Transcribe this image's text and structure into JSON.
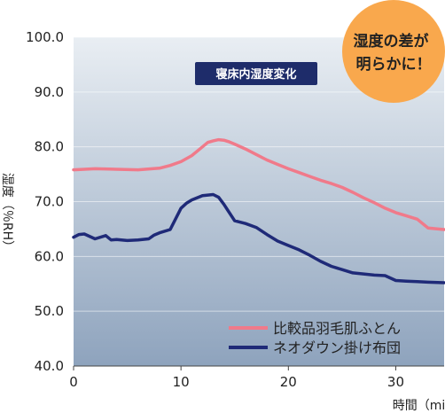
{
  "chart_data": {
    "type": "line",
    "title": "寝床内湿度変化",
    "xlabel": "時間（min）",
    "ylabel": "湿度（％RH）",
    "xlim": [
      0,
      34.5
    ],
    "ylim": [
      40,
      100
    ],
    "x_ticks": [
      "0",
      "10",
      "20",
      "30"
    ],
    "y_ticks": [
      "40.0",
      "50.0",
      "60.0",
      "70.0",
      "80.0",
      "90.0",
      "100.0"
    ],
    "legend_position": "bottom-right",
    "series": [
      {
        "name": "比較品羽毛肌ふとん",
        "color": "#f07a8a",
        "x": [
          0,
          2,
          4,
          6,
          8,
          9,
          10,
          11,
          12,
          12.5,
          13,
          13.5,
          14,
          14.5,
          15,
          16,
          17,
          18,
          19,
          20,
          21,
          22,
          23,
          24,
          25,
          26,
          27,
          28,
          29,
          30,
          31,
          32,
          33,
          34.5
        ],
        "y": [
          75.8,
          76.0,
          75.9,
          75.8,
          76.1,
          76.6,
          77.3,
          78.4,
          80.0,
          80.8,
          81.1,
          81.3,
          81.2,
          80.9,
          80.5,
          79.6,
          78.6,
          77.6,
          76.8,
          76.0,
          75.3,
          74.6,
          73.9,
          73.3,
          72.6,
          71.7,
          70.7,
          69.8,
          68.8,
          68.0,
          67.4,
          66.8,
          65.2,
          64.9
        ]
      },
      {
        "name": "ネオダウン掛け布団",
        "color": "#1f2a78",
        "x": [
          0,
          0.5,
          1,
          2,
          3,
          3.5,
          4,
          5,
          6,
          7,
          7.5,
          8,
          9,
          10,
          10.5,
          11,
          12,
          13,
          13.5,
          14,
          15,
          16,
          17,
          18,
          19,
          20,
          21,
          22,
          23,
          24,
          25,
          26,
          27,
          28,
          29,
          30,
          31,
          32,
          33,
          34.5
        ],
        "y": [
          63.5,
          64.0,
          64.1,
          63.2,
          63.8,
          63.0,
          63.1,
          62.9,
          63.0,
          63.2,
          63.9,
          64.3,
          64.9,
          68.8,
          69.7,
          70.3,
          71.1,
          71.3,
          70.8,
          69.5,
          66.5,
          66.0,
          65.3,
          64.0,
          62.8,
          62.0,
          61.2,
          60.2,
          59.1,
          58.2,
          57.6,
          57.0,
          56.8,
          56.6,
          56.5,
          55.6,
          55.5,
          55.4,
          55.3,
          55.2
        ]
      }
    ],
    "annotation": "湿度の差が\n明らかに！",
    "colors": {
      "badge": "#f9a84d",
      "title_bg": "#1e2c6a",
      "plot_top": "#e9eef3",
      "plot_bottom": "#8ea3bd"
    }
  }
}
